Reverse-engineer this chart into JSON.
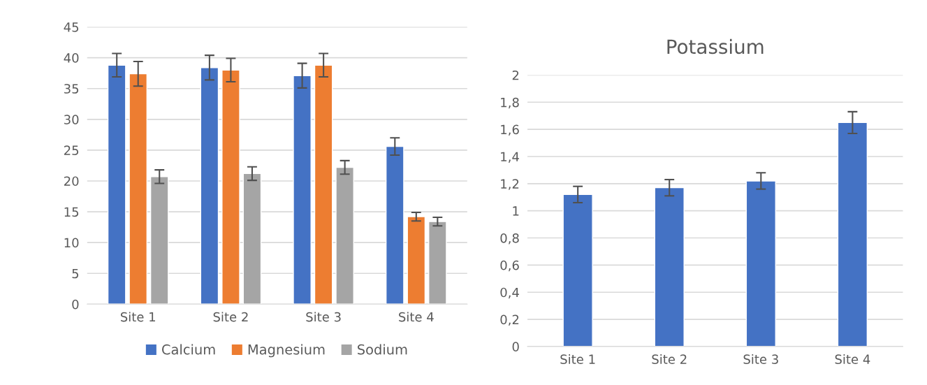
{
  "chart_data": [
    {
      "type": "bar",
      "categories": [
        "Site 1",
        "Site 2",
        "Site 3",
        "Site 4"
      ],
      "series": [
        {
          "name": "Calcium",
          "color": "#4472c4",
          "values": [
            38.8,
            38.4,
            37.1,
            25.6
          ],
          "errors": [
            1.9,
            2.0,
            2.0,
            1.4
          ]
        },
        {
          "name": "Magnesium",
          "color": "#ed7d31",
          "values": [
            37.4,
            38.0,
            38.8,
            14.2
          ],
          "errors": [
            2.0,
            1.9,
            1.9,
            0.7
          ]
        },
        {
          "name": "Sodium",
          "color": "#a5a5a5",
          "values": [
            20.7,
            21.2,
            22.2,
            13.4
          ],
          "errors": [
            1.1,
            1.1,
            1.1,
            0.7
          ]
        }
      ],
      "ylim": [
        0,
        45
      ],
      "yticks": [
        0,
        5,
        10,
        15,
        20,
        25,
        30,
        35,
        40,
        45
      ],
      "grid": "y",
      "legend": "bottom"
    },
    {
      "type": "bar",
      "title": "Potassium",
      "categories": [
        "Site 1",
        "Site 2",
        "Site 3",
        "Site 4"
      ],
      "series": [
        {
          "color": "#4472c4",
          "values": [
            1.12,
            1.17,
            1.22,
            1.65
          ],
          "errors": [
            0.06,
            0.06,
            0.06,
            0.08
          ]
        }
      ],
      "ylim": [
        0,
        2
      ],
      "yticks": [
        0,
        {
          "value": 0.2,
          "label": "0,2"
        },
        {
          "value": 0.4,
          "label": "0,4"
        },
        {
          "value": 0.6,
          "label": "0,6"
        },
        {
          "value": 0.8,
          "label": "0,8"
        },
        1,
        {
          "value": 1.2,
          "label": "1,2"
        },
        {
          "value": 1.4,
          "label": "1,4"
        },
        {
          "value": 1.6,
          "label": "1,6"
        },
        {
          "value": 1.8,
          "label": "1,8"
        },
        2
      ],
      "grid": "y"
    }
  ]
}
